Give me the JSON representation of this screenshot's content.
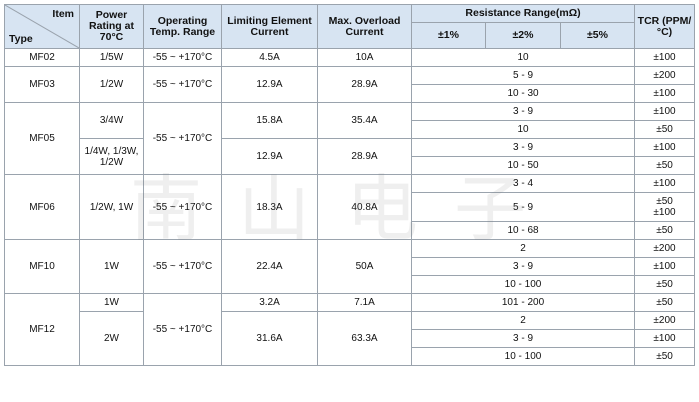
{
  "header": {
    "item": "Item",
    "type": "Type",
    "power": "Power Rating at 70°C",
    "temp": "Operating Temp. Range",
    "limiting": "Limiting Element Current",
    "overload": "Max. Overload Current",
    "resistance_range": "Resistance Range(mΩ)",
    "tol1": "±1%",
    "tol2": "±2%",
    "tol5": "±5%",
    "tcr": "TCR (PPM/°C)"
  },
  "rows": {
    "mf02": {
      "type": "MF02",
      "power": "1/5W",
      "temp": "-55 ~ +170°C",
      "limiting": "4.5A",
      "overload": "10A",
      "range": "10",
      "tcr": "±100"
    },
    "mf03": {
      "type": "MF03",
      "power": "1/2W",
      "temp": "-55 ~ +170°C",
      "limiting": "12.9A",
      "overload": "28.9A",
      "r1": "5 - 9",
      "t1": "±200",
      "r2": "10 - 30",
      "t2": "±100"
    },
    "mf05": {
      "type": "MF05",
      "temp": "-55 ~ +170°C",
      "p1": "3/4W",
      "l1": "15.8A",
      "o1": "35.4A",
      "r1": "3 - 9",
      "t1": "±100",
      "r2": "10",
      "t2": "±50",
      "p2": "1/4W, 1/3W, 1/2W",
      "l2": "12.9A",
      "o2": "28.9A",
      "r3": "3 - 9",
      "t3": "±100",
      "r4": "10 - 50",
      "t4": "±50"
    },
    "mf06": {
      "type": "MF06",
      "power": "1/2W, 1W",
      "temp": "-55 ~ +170°C",
      "limiting": "18.3A",
      "overload": "40.8A",
      "r1": "3 - 4",
      "t1": "±100",
      "r2": "5 - 9",
      "t2a": "±50",
      "t2b": "±100",
      "r3": "10 - 68",
      "t3": "±50"
    },
    "mf10": {
      "type": "MF10",
      "power": "1W",
      "temp": "-55 ~ +170°C",
      "limiting": "22.4A",
      "overload": "50A",
      "r1": "2",
      "t1": "±200",
      "r2": "3 - 9",
      "t2": "±100",
      "r3": "10 - 100",
      "t3": "±50"
    },
    "mf12": {
      "type": "MF12",
      "temp": "-55 ~ +170°C",
      "p1": "1W",
      "l1": "3.2A",
      "o1": "7.1A",
      "r1": "101 - 200",
      "t1": "±50",
      "p2": "2W",
      "l2": "31.6A",
      "o2": "63.3A",
      "r2": "2",
      "t2": "±200",
      "r3": "3 - 9",
      "t3": "±100",
      "r4": "10 - 100",
      "t4": "±50"
    }
  },
  "watermark": "南山电子"
}
